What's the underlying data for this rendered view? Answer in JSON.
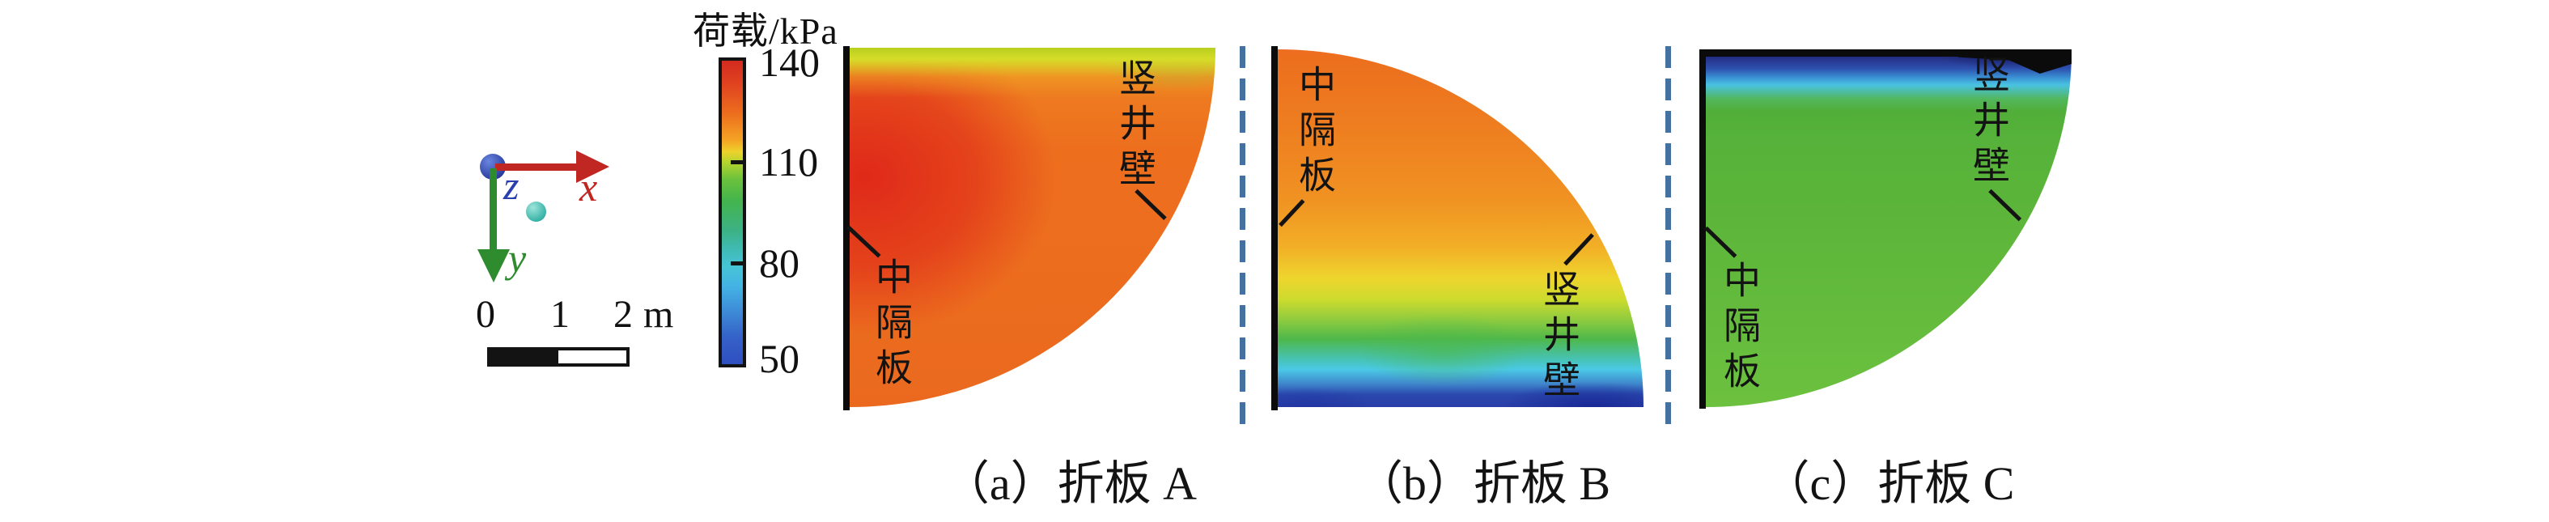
{
  "figure": {
    "background": "#ffffff",
    "colorbar": {
      "title": "荷载/kPa",
      "min": 50,
      "max": 140,
      "tick_labels": [
        "140",
        "110",
        "80",
        "50"
      ]
    },
    "triad": {
      "x_label": "x",
      "y_label": "y",
      "z_label": "z",
      "x_color": "#c02622",
      "y_color": "#2e8b2e",
      "z_color": "#2b3fae"
    },
    "scale_bar": {
      "tick0": "0",
      "tick1": "1",
      "tick2": "2",
      "unit": "m"
    },
    "plots": [
      {
        "caption": "（a）折板 A",
        "mid_label": "中隔板",
        "wall_label": "竖井壁"
      },
      {
        "caption": "（b）折板 B",
        "mid_label": "中隔板",
        "wall_label": "竖井壁"
      },
      {
        "caption": "（c）折板 C",
        "mid_label": "中隔板",
        "wall_label": "竖井壁"
      }
    ],
    "colors": {
      "divider_dashed": "#44719f",
      "plate_outline": "#0b0b0b"
    }
  },
  "chart_data": {
    "type": "heatmap",
    "title": "荷载/kPa",
    "legend_position": "left colorbar",
    "colorbar": {
      "label": "荷载/kPa",
      "min": 50,
      "max": 140,
      "ticks": [
        140,
        110,
        80,
        50
      ],
      "colormap_stops": [
        {
          "value": 140,
          "color": "#d42a20"
        },
        {
          "value": 128,
          "color": "#ec6c1e"
        },
        {
          "value": 120,
          "color": "#eed22c"
        },
        {
          "value": 110,
          "color": "#b4d42e"
        },
        {
          "value": 100,
          "color": "#44b44c"
        },
        {
          "value": 85,
          "color": "#3cb285"
        },
        {
          "value": 80,
          "color": "#46c4d6"
        },
        {
          "value": 65,
          "color": "#3e8ed8"
        },
        {
          "value": 50,
          "color": "#2f4fc0"
        }
      ]
    },
    "scale_bar": {
      "ticks": [
        "0",
        "1",
        "2"
      ],
      "unit": "m",
      "bar_style": "half black / half white, 2 m total"
    },
    "axes_triad": {
      "x": "right (red)",
      "y": "down (green)",
      "z": "out of plane (blue sphere)"
    },
    "panels": [
      {
        "name": "折板 A",
        "caption": "（a）折板 A",
        "shape": "quarter disc, straight top + straight left (中隔板), arc bottom-right (竖井壁)",
        "annotations": [
          "中隔板",
          "竖井壁"
        ],
        "field_summary": "mostly 133–140 kPa orange-red; red core ≈140 kPa near 中隔板 upper-left; thin yellow-green band ≈115–120 kPa along top edge; small green patch ≈105 kPa at top-right corner",
        "vertical_profile": [
          {
            "depth_fraction": 0.0,
            "load_kPa": 117
          },
          {
            "depth_fraction": 0.1,
            "load_kPa": 136
          },
          {
            "depth_fraction": 0.35,
            "load_kPa": 140
          },
          {
            "depth_fraction": 0.7,
            "load_kPa": 134
          },
          {
            "depth_fraction": 1.0,
            "load_kPa": 132
          }
        ]
      },
      {
        "name": "折板 B",
        "caption": "（b）折板 B",
        "shape": "quarter disc, straight left (中隔板) + straight bottom, arc top-right (竖井壁)",
        "annotations": [
          "中隔板",
          "竖井壁"
        ],
        "field_summary": "vertical gradient decreasing downward: ≈135 kPa orange at top → ≈120 kPa yellow at ~65% height → ≈100 kPa green at ~80% → ≈78 kPa cyan at ~90% → ≈55 kPa dark blue along bottom edge (darkest near bottom-right)",
        "vertical_profile": [
          {
            "depth_fraction": 0.0,
            "load_kPa": 134
          },
          {
            "depth_fraction": 0.45,
            "load_kPa": 128
          },
          {
            "depth_fraction": 0.64,
            "load_kPa": 120
          },
          {
            "depth_fraction": 0.78,
            "load_kPa": 103
          },
          {
            "depth_fraction": 0.88,
            "load_kPa": 80
          },
          {
            "depth_fraction": 0.95,
            "load_kPa": 62
          },
          {
            "depth_fraction": 1.0,
            "load_kPa": 55
          }
        ]
      },
      {
        "name": "折板 C",
        "caption": "（c）折板 C",
        "shape": "quarter disc, straight top + straight left (中隔板), arc bottom-right (竖井壁); black band along top edge",
        "annotations": [
          "中隔板",
          "竖井壁"
        ],
        "field_summary": "thin dark-blue band ≈50–55 kPa at top edge, cyan strip ≈75–80 kPa just below, remainder nearly uniform green ≈100–105 kPa",
        "vertical_profile": [
          {
            "depth_fraction": 0.0,
            "load_kPa": 50
          },
          {
            "depth_fraction": 0.05,
            "load_kPa": 57
          },
          {
            "depth_fraction": 0.1,
            "load_kPa": 78
          },
          {
            "depth_fraction": 0.15,
            "load_kPa": 95
          },
          {
            "depth_fraction": 0.3,
            "load_kPa": 102
          },
          {
            "depth_fraction": 1.0,
            "load_kPa": 104
          }
        ]
      }
    ]
  }
}
